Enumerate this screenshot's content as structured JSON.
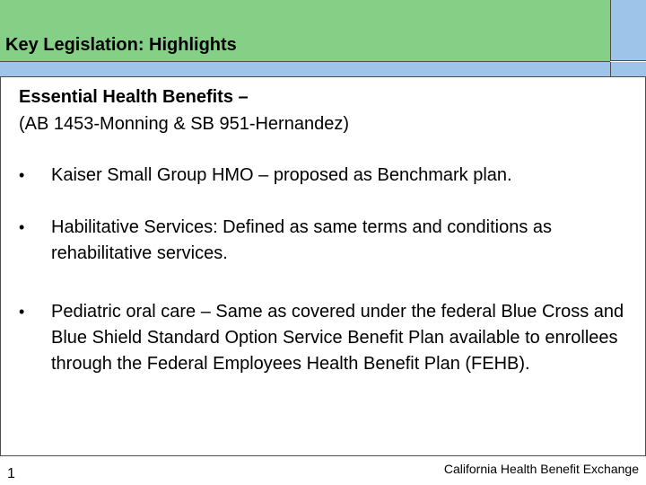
{
  "slide": {
    "title": "Key Legislation:  Highlights",
    "heading": "Essential Health Benefits –",
    "subheading": "(AB 1453-Monning & SB 951-Hernandez)",
    "bullets": [
      {
        "text": "Kaiser Small Group HMO – proposed as Benchmark plan."
      },
      {
        "text": "Habilitative Services:  Defined as same terms and conditions as rehabilitative services."
      },
      {
        "text": "Pediatric oral care – Same as covered under the federal Blue Cross and Blue Shield Standard Option Service Benefit Plan available to enrollees through the Federal Employees Health Benefit Plan (FEHB)."
      }
    ],
    "bullet_symbol": "•"
  },
  "footer": {
    "organization": "California Health Benefit Exchange",
    "page_number": "1"
  },
  "colors": {
    "header_green": "#86cf86",
    "accent_blue": "#9ec4ea",
    "rule": "#4d4d4d"
  }
}
